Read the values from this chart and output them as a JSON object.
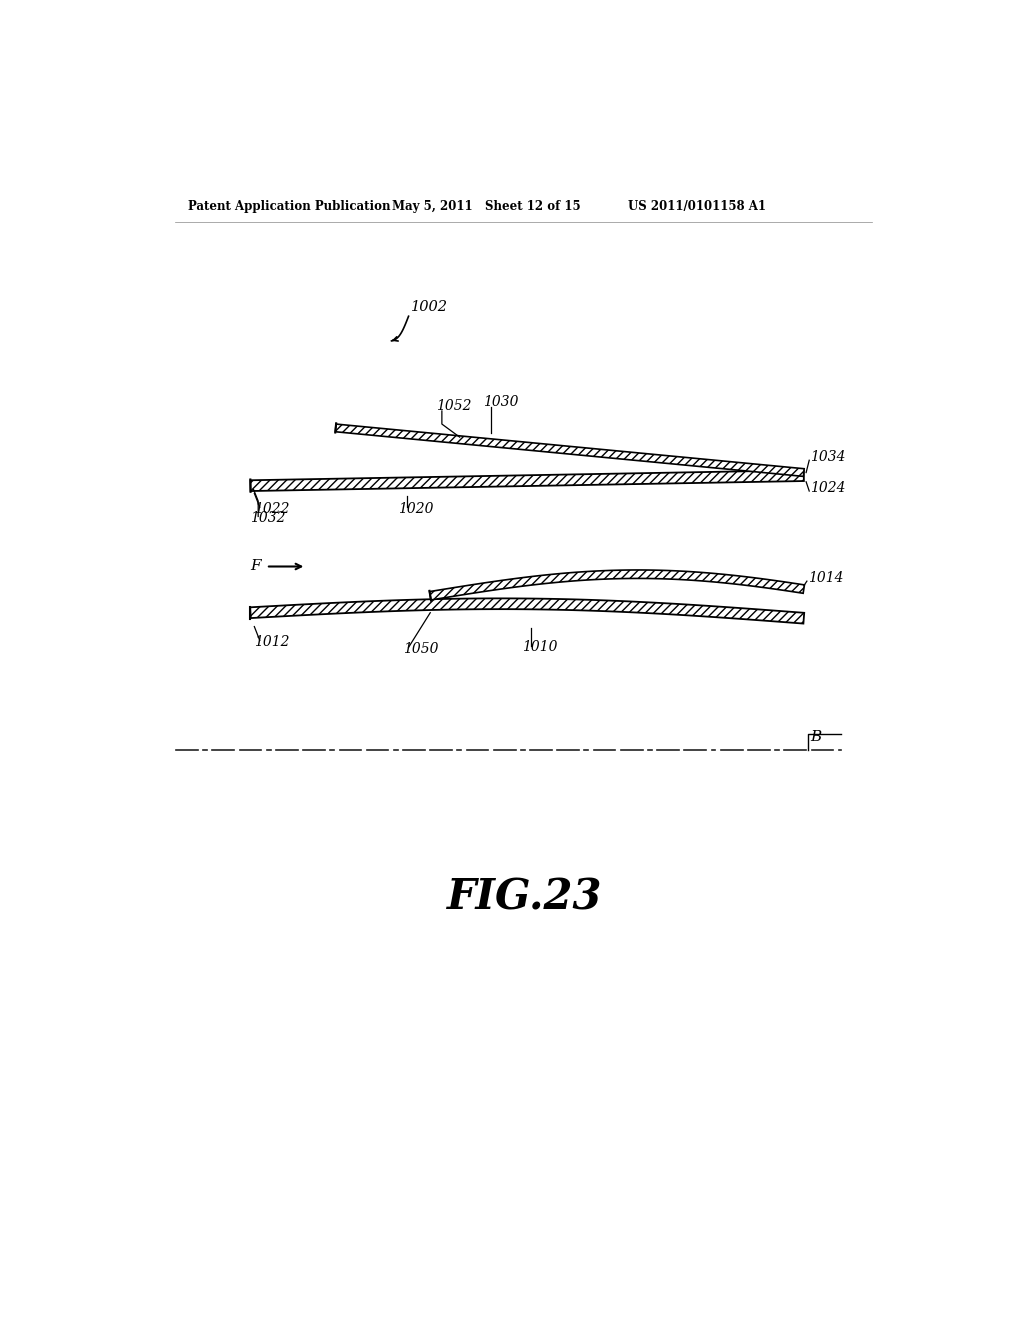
{
  "bg_color": "#ffffff",
  "header_left": "Patent Application Publication",
  "header_mid": "May 5, 2011   Sheet 12 of 15",
  "header_right": "US 2011/0101158 A1",
  "fig_label": "FIG.23",
  "label_1002": "1002",
  "label_1032": "1032",
  "label_1052": "1052",
  "label_1030": "1030",
  "label_1034": "1034",
  "label_1022": "1022",
  "label_1020": "1020",
  "label_1024": "1024",
  "label_F": "F",
  "label_1014": "1014",
  "label_1010": "1010",
  "label_1012": "1012",
  "label_1050": "1050",
  "label_B": "B",
  "line_color": "#000000",
  "hatch_color": "#000000"
}
